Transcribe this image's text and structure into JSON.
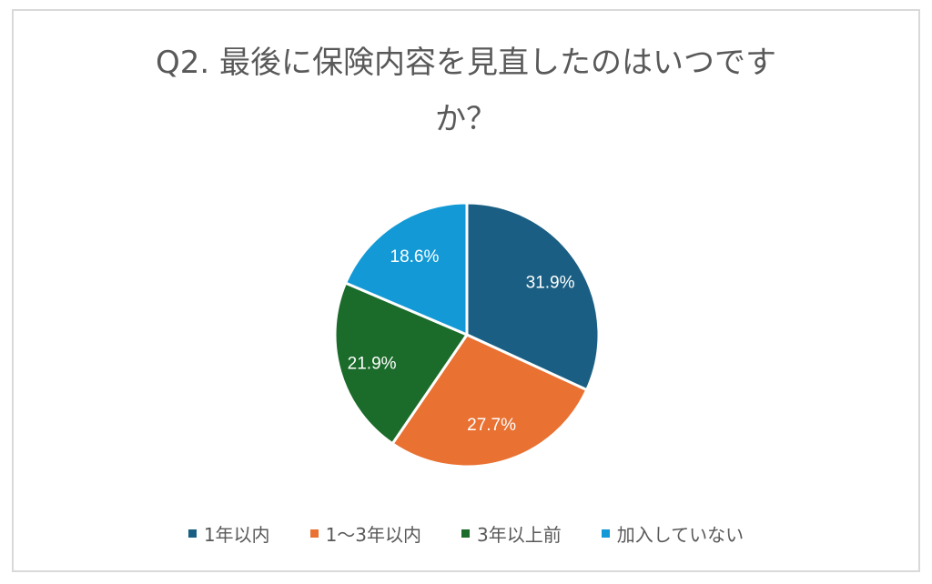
{
  "chart_data": {
    "type": "pie",
    "title": "Q2. 最後に保険内容を見直したのはいつですか？",
    "title_lines": [
      "Q2. 最後に保険内容を見直したのはいつです",
      "か？"
    ],
    "categories": [
      "1年以内",
      "1～3年以内",
      "3年以上前",
      "加入していない"
    ],
    "values": [
      31.9,
      27.7,
      21.9,
      18.6
    ],
    "labels": [
      "31.9%",
      "27.7%",
      "21.9%",
      "18.6%"
    ],
    "colors": [
      "#1a5f83",
      "#e97132",
      "#1b6b2a",
      "#139ad6"
    ],
    "start_angle_deg": 0,
    "direction": "clockwise",
    "legend_position": "bottom",
    "xlabel": "",
    "ylabel": ""
  }
}
